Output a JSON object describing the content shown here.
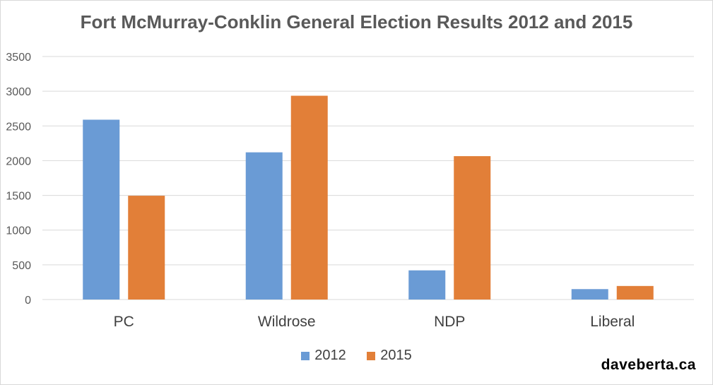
{
  "colors": {
    "series_2012": "#6a9bd5",
    "series_2015": "#e27f38",
    "grid": "#d9d9d9",
    "text": "#595959"
  },
  "watermark": "daveberta.ca",
  "chart_data": {
    "type": "bar",
    "title": "Fort McMurray-Conklin General Election Results 2012 and 2015",
    "xlabel": "",
    "ylabel": "",
    "ylim": [
      0,
      3500
    ],
    "yticks": [
      "0",
      "500",
      "1000",
      "1500",
      "2000",
      "2500",
      "3000",
      "3500"
    ],
    "grid": true,
    "legend_position": "bottom",
    "categories": [
      "PC",
      "Wildrose",
      "NDP",
      "Liberal"
    ],
    "series": [
      {
        "name": "2012",
        "color": "#6a9bd5",
        "values": [
          2590,
          2120,
          420,
          150
        ]
      },
      {
        "name": "2015",
        "color": "#e27f38",
        "values": [
          1495,
          2935,
          2065,
          195
        ]
      }
    ]
  }
}
